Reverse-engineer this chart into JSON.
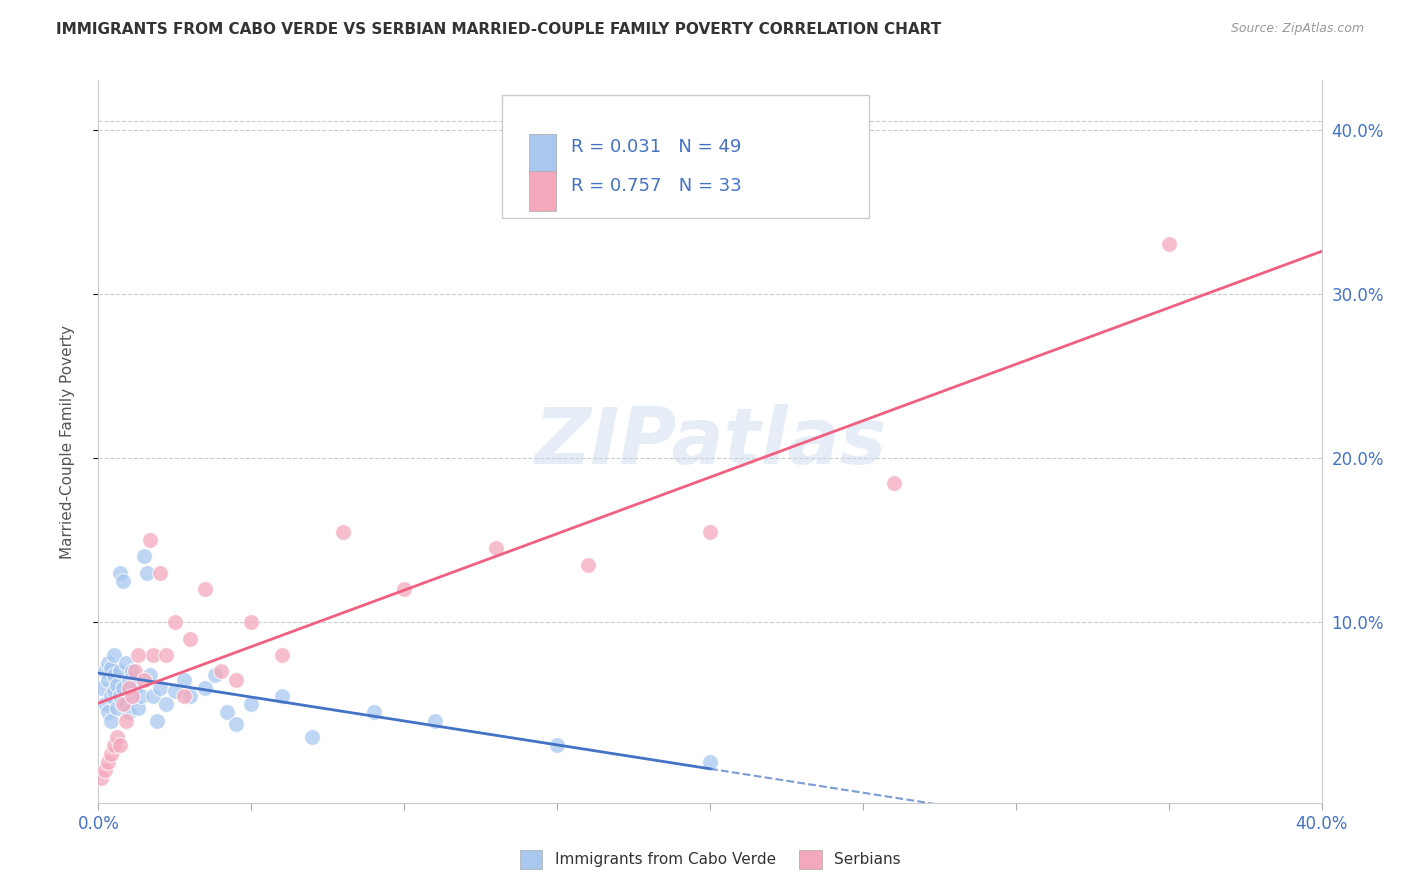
{
  "title": "IMMIGRANTS FROM CABO VERDE VS SERBIAN MARRIED-COUPLE FAMILY POVERTY CORRELATION CHART",
  "source": "Source: ZipAtlas.com",
  "ylabel": "Married-Couple Family Poverty",
  "xmin": 0.0,
  "xmax": 0.4,
  "ymin": -0.01,
  "ymax": 0.43,
  "r_cabo": 0.031,
  "n_cabo": 49,
  "r_serbian": 0.757,
  "n_serbian": 33,
  "color_cabo": "#A8C8F0",
  "color_serbian": "#F4A8BC",
  "color_cabo_line": "#4472C4",
  "color_serbian_line": "#F06080",
  "color_grid": "#CCCCCC",
  "watermark": "ZIPatlas",
  "legend_label_cabo": "Immigrants from Cabo Verde",
  "legend_label_serbian": "Serbians",
  "cabo_x": [
    0.001,
    0.002,
    0.002,
    0.003,
    0.003,
    0.003,
    0.004,
    0.004,
    0.004,
    0.005,
    0.005,
    0.005,
    0.006,
    0.006,
    0.007,
    0.007,
    0.007,
    0.008,
    0.008,
    0.009,
    0.009,
    0.01,
    0.01,
    0.011,
    0.011,
    0.012,
    0.013,
    0.014,
    0.015,
    0.016,
    0.017,
    0.018,
    0.019,
    0.02,
    0.022,
    0.025,
    0.028,
    0.03,
    0.035,
    0.038,
    0.042,
    0.045,
    0.05,
    0.06,
    0.07,
    0.09,
    0.11,
    0.15,
    0.2
  ],
  "cabo_y": [
    0.06,
    0.07,
    0.05,
    0.065,
    0.075,
    0.045,
    0.072,
    0.055,
    0.04,
    0.068,
    0.058,
    0.08,
    0.062,
    0.048,
    0.13,
    0.07,
    0.055,
    0.125,
    0.06,
    0.075,
    0.05,
    0.065,
    0.045,
    0.07,
    0.055,
    0.06,
    0.048,
    0.055,
    0.14,
    0.13,
    0.068,
    0.055,
    0.04,
    0.06,
    0.05,
    0.058,
    0.065,
    0.055,
    0.06,
    0.068,
    0.045,
    0.038,
    0.05,
    0.055,
    0.03,
    0.045,
    0.04,
    0.025,
    0.015
  ],
  "serbian_x": [
    0.001,
    0.002,
    0.003,
    0.004,
    0.005,
    0.006,
    0.007,
    0.008,
    0.009,
    0.01,
    0.011,
    0.012,
    0.013,
    0.015,
    0.017,
    0.018,
    0.02,
    0.022,
    0.025,
    0.028,
    0.03,
    0.035,
    0.04,
    0.045,
    0.05,
    0.06,
    0.08,
    0.1,
    0.13,
    0.16,
    0.2,
    0.26,
    0.35
  ],
  "serbian_y": [
    0.005,
    0.01,
    0.015,
    0.02,
    0.025,
    0.03,
    0.025,
    0.05,
    0.04,
    0.06,
    0.055,
    0.07,
    0.08,
    0.065,
    0.15,
    0.08,
    0.13,
    0.08,
    0.1,
    0.055,
    0.09,
    0.12,
    0.07,
    0.065,
    0.1,
    0.08,
    0.155,
    0.12,
    0.145,
    0.135,
    0.155,
    0.185,
    0.33
  ]
}
